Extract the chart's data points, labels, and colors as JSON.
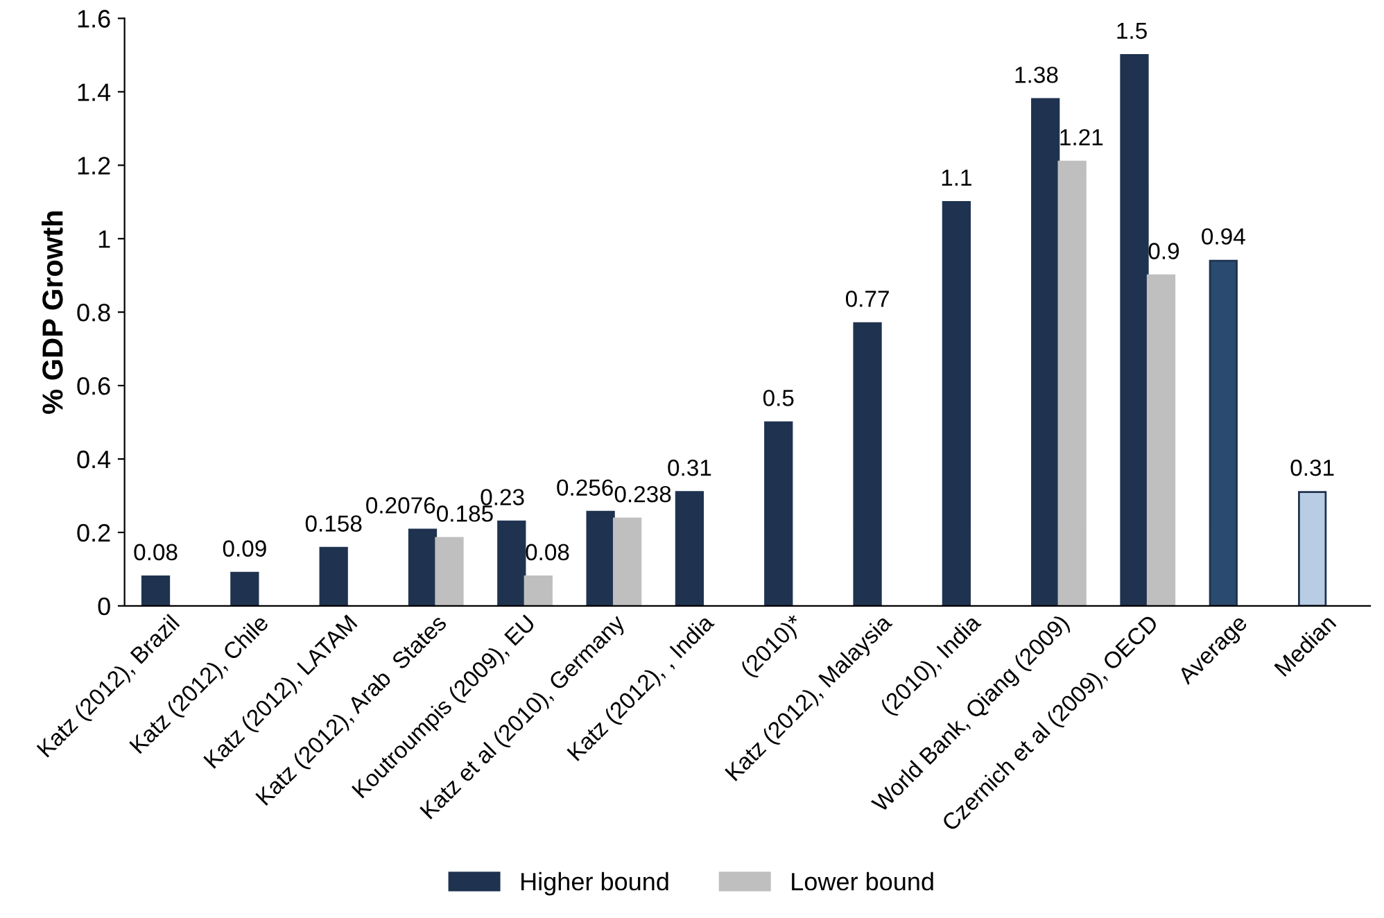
{
  "chart_data": {
    "type": "bar",
    "ylabel": "% GDP Growth",
    "categories": [
      "Katz (2012), Brazil",
      "Katz (2012), Chile",
      "Katz (2012), LATAM",
      "Katz (2012), Arab  States",
      "Koutroumpis (2009), EU",
      "Katz et al (2010), Germany",
      "Katz (2012), , India",
      "(2010)*",
      "Katz (2012), Malaysia",
      "(2010), India",
      "World Bank, Qiang (2009)",
      "Czernich et al (2009), OECD",
      "Average",
      "Median"
    ],
    "series": [
      {
        "name": "Higher bound",
        "color": "#1f3350",
        "colors": [
          "#1f3350",
          "#1f3350",
          "#1f3350",
          "#1f3350",
          "#1f3350",
          "#1f3350",
          "#1f3350",
          "#1f3350",
          "#1f3350",
          "#1f3350",
          "#1f3350",
          "#1f3350",
          "#2a4a70",
          "#b8cce4"
        ],
        "values": [
          0.08,
          0.09,
          0.158,
          0.2076,
          0.23,
          0.256,
          0.31,
          0.5,
          0.77,
          1.1,
          1.38,
          1.5,
          0.94,
          0.31
        ]
      },
      {
        "name": "Lower bound",
        "color": "#bfbfbf",
        "values": [
          null,
          null,
          null,
          0.185,
          0.08,
          0.238,
          null,
          null,
          null,
          null,
          1.21,
          0.9,
          null,
          null
        ]
      }
    ],
    "ylim": [
      0,
      1.6
    ],
    "yticks": [
      0,
      0.2,
      0.4,
      0.6,
      0.8,
      1,
      1.2,
      1.4,
      1.6
    ],
    "data_labels": true,
    "grid": false,
    "legend": "bottom"
  }
}
